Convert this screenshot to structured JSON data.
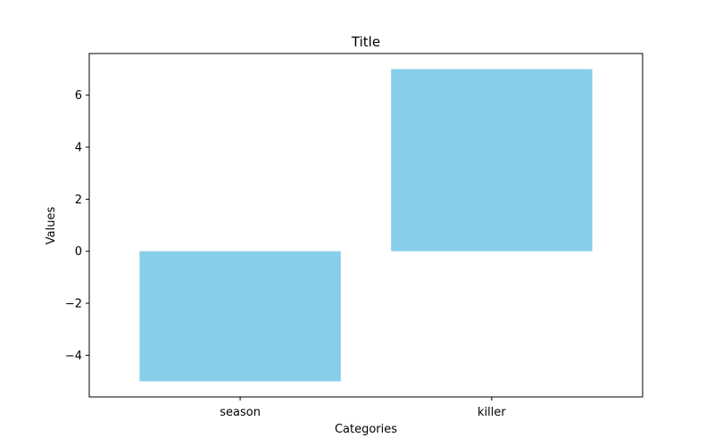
{
  "chart_data": {
    "type": "bar",
    "title": "Title",
    "xlabel": "Categories",
    "ylabel": "Values",
    "categories": [
      "season",
      "killer"
    ],
    "values": [
      -5,
      7
    ],
    "ylim": [
      -5.6,
      7.6
    ],
    "yticks": [
      -4,
      -2,
      0,
      2,
      4,
      6
    ],
    "ytick_labels": [
      "−4",
      "−2",
      "0",
      "2",
      "4",
      "6"
    ],
    "grid": false,
    "legend": "none",
    "bar_color": "#87ceeb"
  }
}
